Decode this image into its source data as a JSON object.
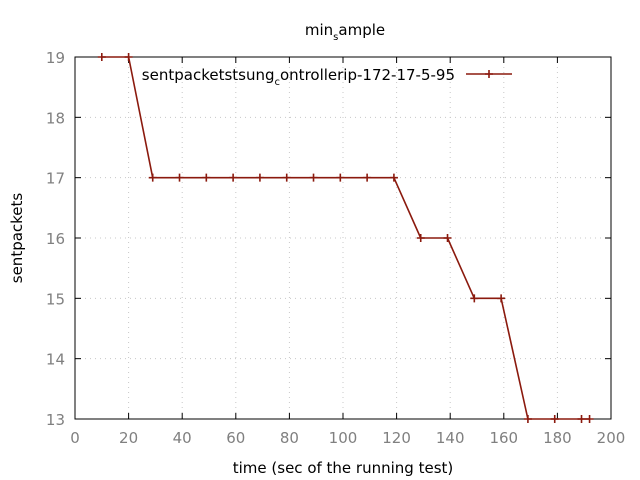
{
  "chart_data": {
    "type": "line",
    "title": {
      "main": "min",
      "sub": "s",
      "tail": "ample"
    },
    "xlabel": "time (sec of the running test)",
    "ylabel": "sentpackets",
    "xlim": [
      0,
      200
    ],
    "ylim": [
      13,
      19
    ],
    "xticks": [
      0,
      20,
      40,
      60,
      80,
      100,
      120,
      140,
      160,
      180,
      200
    ],
    "yticks": [
      13,
      14,
      15,
      16,
      17,
      18,
      19
    ],
    "grid": true,
    "legend_position": "top-right",
    "series": [
      {
        "name": {
          "main": "sentpacketstsung",
          "sub": "c",
          "tail": "ontrollerip-172-17-5-95"
        },
        "color": "#8b1a0e",
        "marker": "plus",
        "x": [
          10,
          20,
          29,
          39,
          49,
          59,
          69,
          79,
          89,
          99,
          109,
          119,
          129,
          139,
          149,
          159,
          169,
          179,
          189,
          192
        ],
        "y": [
          19,
          19,
          17,
          17,
          17,
          17,
          17,
          17,
          17,
          17,
          17,
          17,
          16,
          16,
          15,
          15,
          13,
          13,
          13,
          13
        ]
      }
    ]
  }
}
